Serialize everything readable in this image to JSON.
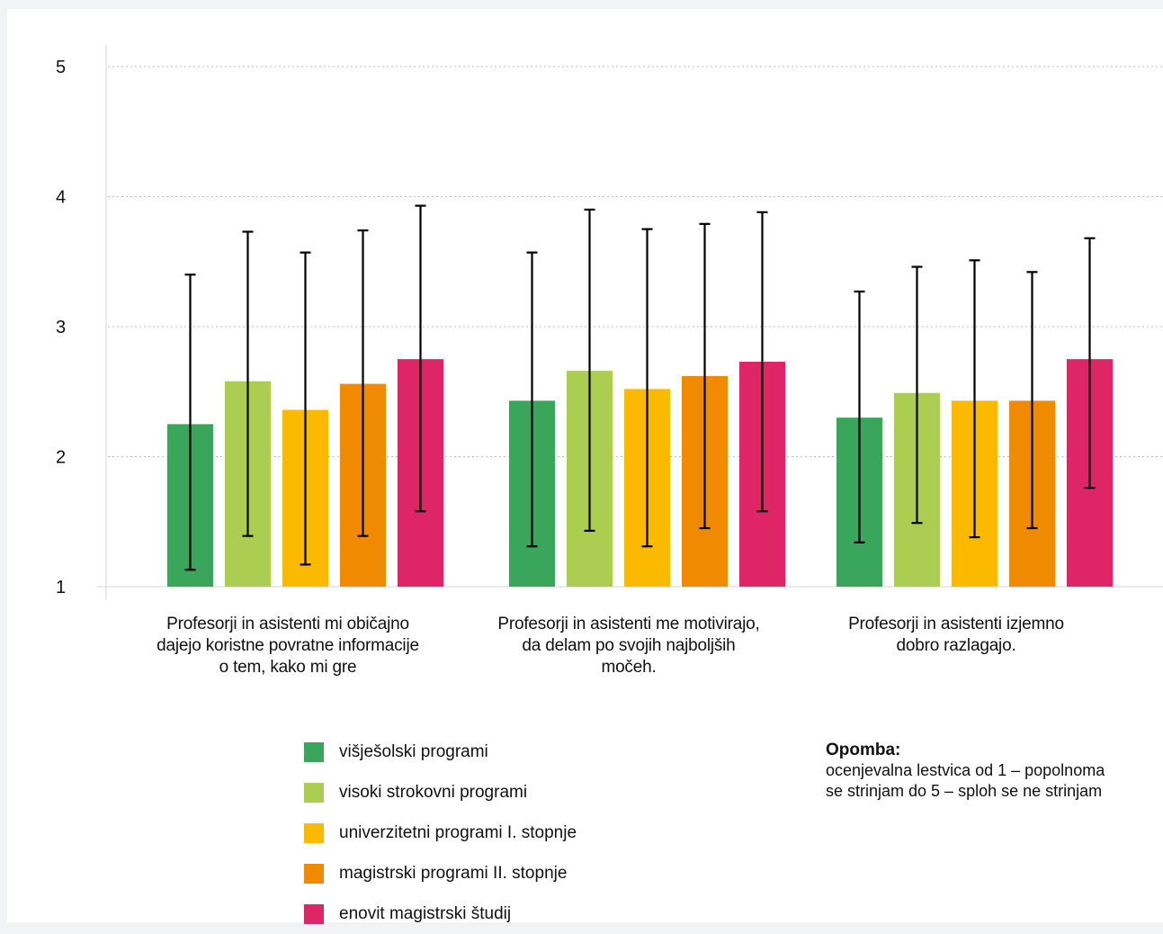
{
  "chart_data": {
    "type": "bar",
    "categories": [
      "Profesorji in asistenti mi običajno\ndajejo koristne povratne informacije\no tem, kako mi gre",
      "Profesorji in asistenti me motivirajo,\nda delam po svojih najboljših\nmočeh.",
      "Profesorji in asistenti izjemno\ndobro razlagajo."
    ],
    "series": [
      {
        "name": "višješolski programi",
        "color": "#3aa65c",
        "values": [
          2.25,
          2.43,
          2.3
        ],
        "error_low": [
          1.13,
          1.31,
          1.34
        ],
        "error_high": [
          3.4,
          3.57,
          3.27
        ]
      },
      {
        "name": "visoki strokovni programi",
        "color": "#aacd52",
        "values": [
          2.58,
          2.66,
          2.49
        ],
        "error_low": [
          1.39,
          1.43,
          1.49
        ],
        "error_high": [
          3.73,
          3.9,
          3.46
        ]
      },
      {
        "name": "univerzitetni programi I. stopnje",
        "color": "#fbba00",
        "values": [
          2.36,
          2.52,
          2.43
        ],
        "error_low": [
          1.17,
          1.31,
          1.38
        ],
        "error_high": [
          3.57,
          3.75,
          3.51
        ]
      },
      {
        "name": "magistrski programi II. stopnje",
        "color": "#f08a00",
        "values": [
          2.56,
          2.62,
          2.43
        ],
        "error_low": [
          1.39,
          1.45,
          1.45
        ],
        "error_high": [
          3.74,
          3.79,
          3.42
        ]
      },
      {
        "name": "enovit magistrski študij",
        "color": "#de2667",
        "values": [
          2.75,
          2.73,
          2.75
        ],
        "error_low": [
          1.58,
          1.58,
          1.76
        ],
        "error_high": [
          3.93,
          3.88,
          3.68
        ]
      }
    ],
    "yticks": [
      1,
      2,
      3,
      4,
      5
    ],
    "ylim": [
      1,
      5
    ],
    "grid": true,
    "legend_position": "bottom"
  },
  "note": {
    "title": "Opomba:",
    "text": "ocenjevalna lestvica od 1 – popolnoma\nse strinjam do 5 – sploh se ne strinjam"
  }
}
